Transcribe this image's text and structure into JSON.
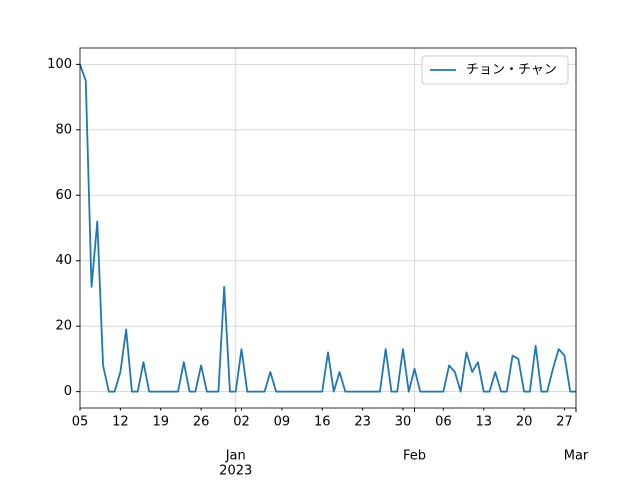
{
  "chart_data": {
    "type": "line",
    "x": [
      "2022-12-05",
      "2022-12-06",
      "2022-12-07",
      "2022-12-08",
      "2022-12-09",
      "2022-12-10",
      "2022-12-11",
      "2022-12-12",
      "2022-12-13",
      "2022-12-14",
      "2022-12-15",
      "2022-12-16",
      "2022-12-17",
      "2022-12-18",
      "2022-12-19",
      "2022-12-20",
      "2022-12-21",
      "2022-12-22",
      "2022-12-23",
      "2022-12-24",
      "2022-12-25",
      "2022-12-26",
      "2022-12-27",
      "2022-12-28",
      "2022-12-29",
      "2022-12-30",
      "2022-12-31",
      "2023-01-01",
      "2023-01-02",
      "2023-01-03",
      "2023-01-04",
      "2023-01-05",
      "2023-01-06",
      "2023-01-07",
      "2023-01-08",
      "2023-01-09",
      "2023-01-10",
      "2023-01-11",
      "2023-01-12",
      "2023-01-13",
      "2023-01-14",
      "2023-01-15",
      "2023-01-16",
      "2023-01-17",
      "2023-01-18",
      "2023-01-19",
      "2023-01-20",
      "2023-01-21",
      "2023-01-22",
      "2023-01-23",
      "2023-01-24",
      "2023-01-25",
      "2023-01-26",
      "2023-01-27",
      "2023-01-28",
      "2023-01-29",
      "2023-01-30",
      "2023-01-31",
      "2023-02-01",
      "2023-02-02",
      "2023-02-03",
      "2023-02-04",
      "2023-02-05",
      "2023-02-06",
      "2023-02-07",
      "2023-02-08",
      "2023-02-09",
      "2023-02-10",
      "2023-02-11",
      "2023-02-12",
      "2023-02-13",
      "2023-02-14",
      "2023-02-15",
      "2023-02-16",
      "2023-02-17",
      "2023-02-18",
      "2023-02-19",
      "2023-02-20",
      "2023-02-21",
      "2023-02-22",
      "2023-02-23",
      "2023-02-24",
      "2023-02-25",
      "2023-02-26",
      "2023-02-27",
      "2023-02-28",
      "2023-03-01"
    ],
    "series": [
      {
        "name": "チョン・チャン",
        "color": "#1f77b4",
        "values": [
          100,
          95,
          32,
          52,
          8,
          0,
          0,
          6,
          19,
          0,
          0,
          9,
          0,
          0,
          0,
          0,
          0,
          0,
          9,
          0,
          0,
          8,
          0,
          0,
          0,
          32,
          0,
          0,
          13,
          0,
          0,
          0,
          0,
          6,
          0,
          0,
          0,
          0,
          0,
          0,
          0,
          0,
          0,
          12,
          0,
          6,
          0,
          0,
          0,
          0,
          0,
          0,
          0,
          13,
          0,
          0,
          13,
          0,
          7,
          0,
          0,
          0,
          0,
          0,
          8,
          6,
          0,
          12,
          6,
          9,
          0,
          0,
          6,
          0,
          0,
          11,
          10,
          0,
          0,
          14,
          0,
          0,
          7,
          13,
          11,
          0,
          0
        ]
      }
    ],
    "xlim": [
      "2022-12-05",
      "2023-03-01"
    ],
    "xticks": [
      {
        "value": "2022-12-05",
        "label": "05"
      },
      {
        "value": "2022-12-12",
        "label": "12"
      },
      {
        "value": "2022-12-19",
        "label": "19"
      },
      {
        "value": "2022-12-26",
        "label": "26"
      },
      {
        "value": "2023-01-02",
        "label": "02"
      },
      {
        "value": "2023-01-09",
        "label": "09"
      },
      {
        "value": "2023-01-16",
        "label": "16"
      },
      {
        "value": "2023-01-23",
        "label": "23"
      },
      {
        "value": "2023-01-30",
        "label": "30"
      },
      {
        "value": "2023-02-06",
        "label": "06"
      },
      {
        "value": "2023-02-13",
        "label": "13"
      },
      {
        "value": "2023-02-20",
        "label": "20"
      },
      {
        "value": "2023-02-27",
        "label": "27"
      }
    ],
    "major_xticks": [
      {
        "value": "2023-01-01",
        "label": "Jan"
      },
      {
        "value": "2023-02-01",
        "label": "Feb"
      },
      {
        "value": "2023-03-01",
        "label": "Mar"
      }
    ],
    "year_label": "2023",
    "ylim": [
      -5,
      105
    ],
    "yticks": [
      0,
      20,
      40,
      60,
      80,
      100
    ],
    "grid": true,
    "legend": "upper right"
  }
}
